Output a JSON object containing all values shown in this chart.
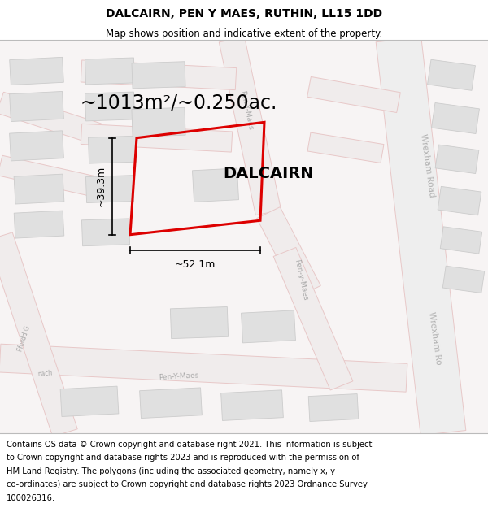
{
  "title": "DALCAIRN, PEN Y MAES, RUTHIN, LL15 1DD",
  "subtitle": "Map shows position and indicative extent of the property.",
  "footer_lines": [
    "Contains OS data © Crown copyright and database right 2021. This information is subject",
    "to Crown copyright and database rights 2023 and is reproduced with the permission of",
    "HM Land Registry. The polygons (including the associated geometry, namely x, y",
    "co-ordinates) are subject to Crown copyright and database rights 2023 Ordnance Survey",
    "100026316."
  ],
  "area_text": "~1013m²/~0.250ac.",
  "property_name": "DALCAIRN",
  "width_label": "~52.1m",
  "height_label": "~39.3m",
  "bg_color": "#ffffff",
  "map_bg": "#f7f4f4",
  "road_fill": "#f0ecec",
  "road_edge": "#e8c8c8",
  "road_centerline": "#f5f0f0",
  "block_fill": "#e0e0e0",
  "block_edge": "#cccccc",
  "red_outline": "#dd0000",
  "title_fontsize": 10,
  "subtitle_fontsize": 8.5,
  "footer_fontsize": 7.2,
  "area_fontsize": 17,
  "property_name_fontsize": 14,
  "dim_fontsize": 9,
  "road_label_color": "#aaaaaa",
  "road_label_size": 6.5
}
